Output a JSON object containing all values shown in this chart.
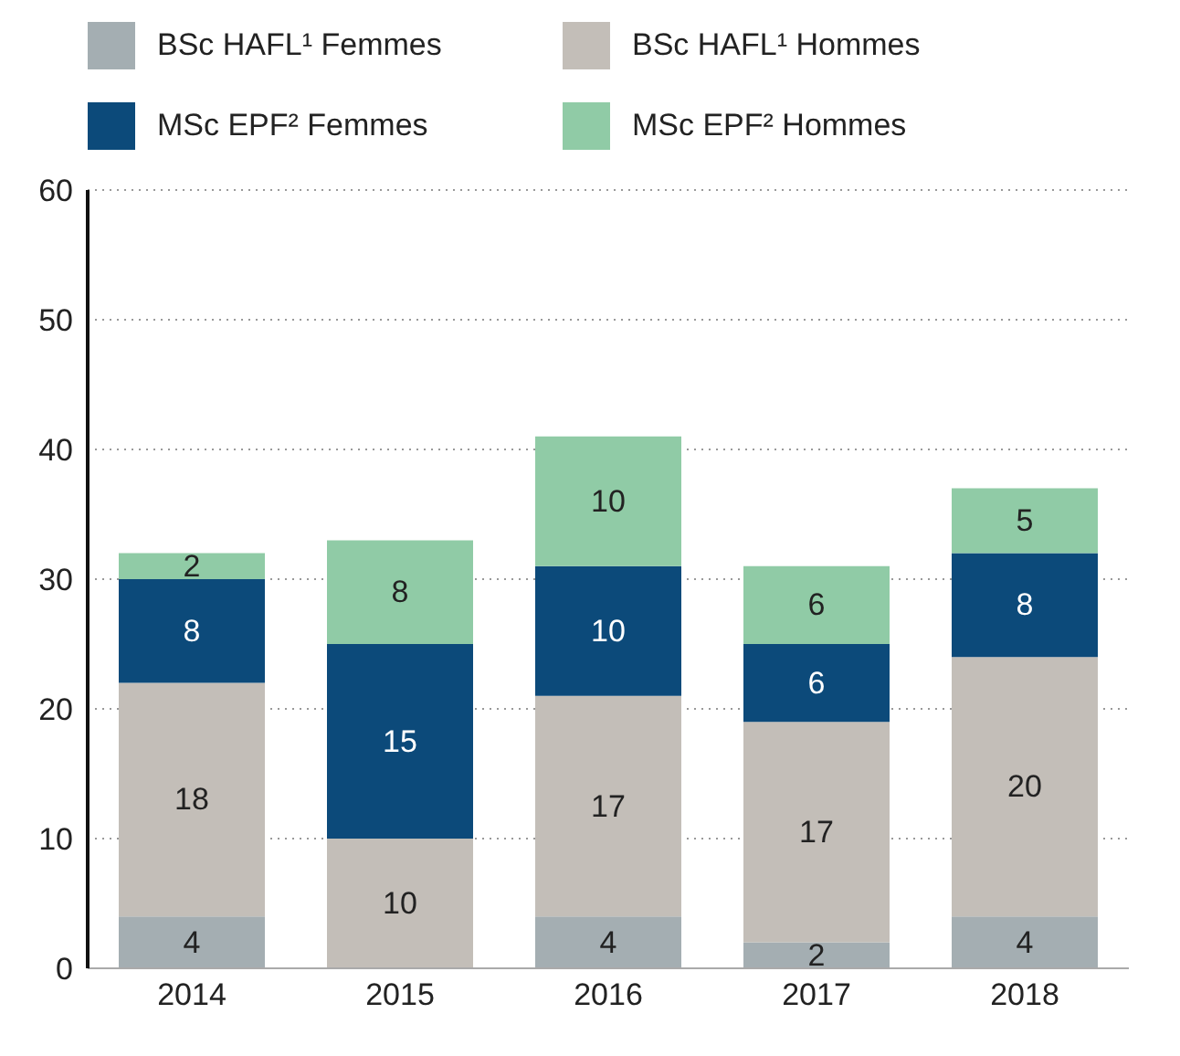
{
  "chart_data": {
    "type": "bar",
    "stacked": true,
    "categories": [
      "2014",
      "2015",
      "2016",
      "2017",
      "2018"
    ],
    "series": [
      {
        "name": "BSc HAFL¹ Femmes",
        "color": "#a4aeb2",
        "values": [
          4,
          0,
          4,
          2,
          4
        ],
        "value_labels": [
          "4",
          null,
          "4",
          "2",
          "4"
        ]
      },
      {
        "name": "BSc HAFL¹ Hommes",
        "color": "#c3beb8",
        "values": [
          18,
          10,
          17,
          17,
          20
        ],
        "value_labels": [
          "18",
          "10",
          "17",
          "17",
          "20"
        ]
      },
      {
        "name": "MSc EPF² Femmes",
        "color": "#0c4a7a",
        "values": [
          8,
          15,
          10,
          6,
          8
        ],
        "value_labels": [
          "8",
          "15",
          "10",
          "6",
          "8"
        ]
      },
      {
        "name": "MSc EPF² Hommes",
        "color": "#90cba6",
        "values": [
          2,
          8,
          10,
          6,
          5
        ],
        "value_labels": [
          "2",
          "8",
          "10",
          "6",
          "5"
        ]
      }
    ],
    "ylim": [
      0,
      60
    ],
    "yticks": [
      0,
      10,
      20,
      30,
      40,
      50,
      60
    ],
    "grid": "y",
    "legend": "top left"
  }
}
